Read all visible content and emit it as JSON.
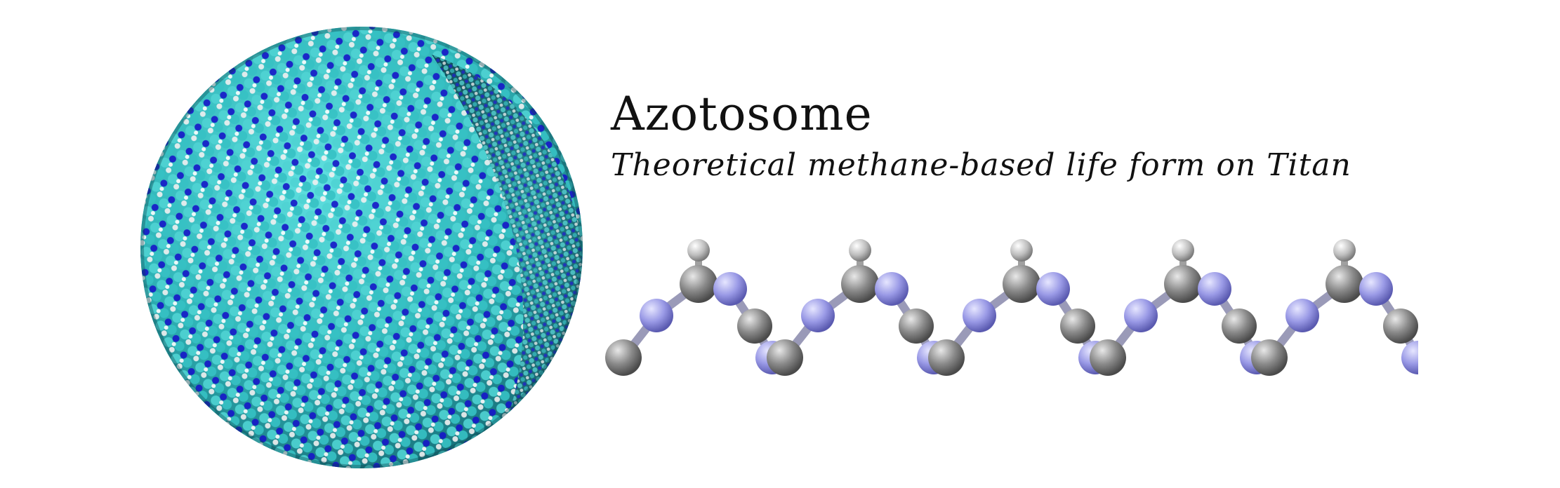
{
  "title": "Azotosome",
  "subtitle": "Theoretical methane-based life form on Titan",
  "colors": {
    "background": "#ffffff",
    "nitrogen_dark": "#1a1ad0",
    "carbon_cyan": "#3fcfcf",
    "hydrogen_white": "#eeeeee",
    "chain_carbon": "#8a8a8a",
    "chain_nitrogen": "#9a9ae6"
  },
  "illustrations": {
    "sphere": "azotosome-membrane-sphere",
    "chain": "acrylonitrile-chain-molecule"
  }
}
